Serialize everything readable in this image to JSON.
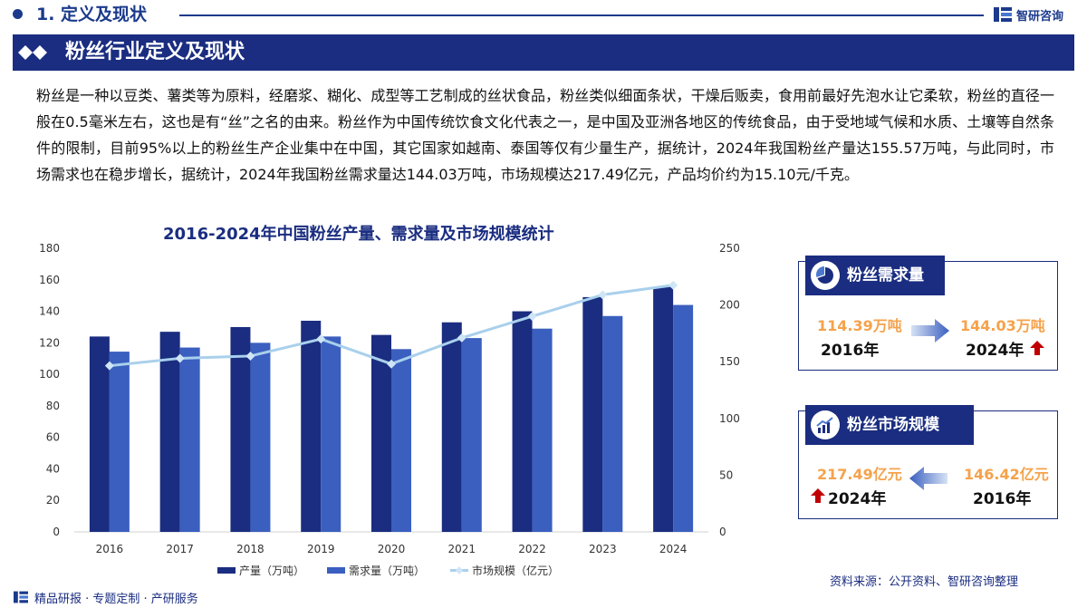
{
  "header": {
    "section_number_title": "1. 定义及现状",
    "brand": "智研咨询",
    "section_title": "粉丝行业定义及现状"
  },
  "intro": "粉丝是一种以豆类、薯类等为原料，经磨浆、糊化、成型等工艺制成的丝状食品，粉丝类似细面条状，干燥后贩卖，食用前最好先泡水让它柔软，粉丝的直径一般在0.5毫米左右，这也是有“丝”之名的由来。粉丝作为中国传统饮食文化代表之一，是中国及亚洲各地区的传统食品，由于受地域气候和水质、土壤等自然条件的限制，目前95%以上的粉丝生产企业集中在中国，其它国家如越南、泰国等仅有少量生产，据统计，2024年我国粉丝产量达155.57万吨，与此同时，市场需求也在稳步增长，据统计，2024年我国粉丝需求量达144.03万吨，市场规模达217.49亿元，产品均价约为15.10元/千克。",
  "chart_data": {
    "type": "bar",
    "title": "2016-2024年中国粉丝产量、需求量及市场规模统计",
    "categories": [
      "2016",
      "2017",
      "2018",
      "2019",
      "2020",
      "2021",
      "2022",
      "2023",
      "2024"
    ],
    "series": [
      {
        "name": "产量（万吨）",
        "type": "bar",
        "axis": "left",
        "color": "#1a2d80",
        "values": [
          124,
          127,
          130,
          134,
          125,
          133,
          140,
          149,
          155.57
        ]
      },
      {
        "name": "需求量（万吨）",
        "type": "bar",
        "axis": "left",
        "color": "#3a5fbf",
        "values": [
          114.39,
          117,
          120,
          124,
          116,
          123,
          129,
          137,
          144.03
        ]
      },
      {
        "name": "市场规模（亿元）",
        "type": "line",
        "axis": "right",
        "color": "#a9d0ec",
        "values": [
          146.42,
          153,
          155,
          170,
          148,
          171,
          190,
          209,
          217.49
        ]
      }
    ],
    "ylim_left": [
      0,
      180
    ],
    "yticks_left": [
      0,
      20,
      40,
      60,
      80,
      100,
      120,
      140,
      160,
      180
    ],
    "ylim_right": [
      0,
      250
    ],
    "yticks_right": [
      0,
      50,
      100,
      150,
      200,
      250
    ],
    "grid": false,
    "legend_position": "bottom"
  },
  "cards": {
    "demand": {
      "title": "粉丝需求量",
      "from_value": "114.39万吨",
      "from_year": "2016年",
      "to_value": "144.03万吨",
      "to_year": "2024年"
    },
    "market": {
      "title": "粉丝市场规模",
      "to_value": "217.49亿元",
      "to_year": "2024年",
      "from_value": "146.42亿元",
      "from_year": "2016年"
    }
  },
  "footer": {
    "slogan": "精品研报 · 专题定制 · 产研服务",
    "source": "资料来源：公开资料、智研咨询整理"
  },
  "colors": {
    "navy": "#1a2d80",
    "accent_orange": "#f5a24b",
    "up_arrow": "#c00000"
  }
}
